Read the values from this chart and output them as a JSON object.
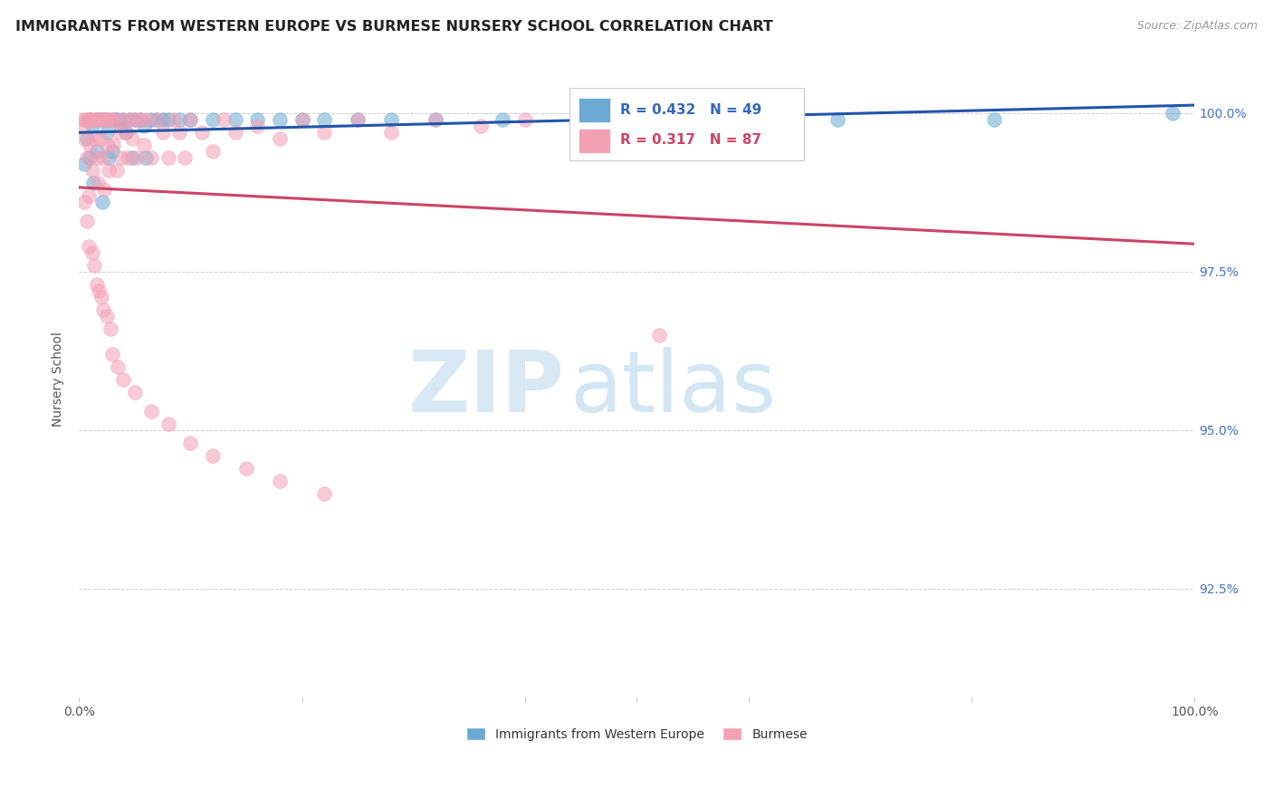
{
  "title": "IMMIGRANTS FROM WESTERN EUROPE VS BURMESE NURSERY SCHOOL CORRELATION CHART",
  "source": "Source: ZipAtlas.com",
  "ylabel": "Nursery School",
  "ytick_labels": [
    "100.0%",
    "97.5%",
    "95.0%",
    "92.5%"
  ],
  "ytick_values": [
    1.0,
    0.975,
    0.95,
    0.925
  ],
  "xmin": 0.0,
  "xmax": 1.0,
  "ymin": 0.908,
  "ymax": 1.008,
  "legend_label_blue": "Immigrants from Western Europe",
  "legend_label_pink": "Burmese",
  "R_blue": 0.432,
  "N_blue": 49,
  "R_pink": 0.317,
  "N_pink": 87,
  "blue_color": "#6aaad4",
  "pink_color": "#f4a0b5",
  "trendline_blue": "#2255aa",
  "trendline_pink": "#cc4466",
  "watermark_zip": "ZIP",
  "watermark_atlas": "atlas",
  "blue_scatter_x": [
    0.005,
    0.007,
    0.01,
    0.01,
    0.012,
    0.013,
    0.015,
    0.016,
    0.018,
    0.02,
    0.021,
    0.022,
    0.025,
    0.025,
    0.027,
    0.03,
    0.03,
    0.032,
    0.035,
    0.037,
    0.04,
    0.042,
    0.045,
    0.048,
    0.05,
    0.055,
    0.058,
    0.06,
    0.065,
    0.07,
    0.075,
    0.08,
    0.09,
    0.1,
    0.12,
    0.14,
    0.16,
    0.18,
    0.2,
    0.22,
    0.25,
    0.28,
    0.32,
    0.38,
    0.45,
    0.55,
    0.68,
    0.82,
    0.98
  ],
  "blue_scatter_y": [
    0.992,
    0.996,
    0.999,
    0.993,
    0.998,
    0.989,
    0.999,
    0.994,
    0.999,
    0.999,
    0.986,
    0.999,
    0.999,
    0.997,
    0.993,
    0.999,
    0.994,
    0.999,
    0.999,
    0.998,
    0.999,
    0.997,
    0.999,
    0.993,
    0.999,
    0.999,
    0.998,
    0.993,
    0.999,
    0.999,
    0.999,
    0.999,
    0.999,
    0.999,
    0.999,
    0.999,
    0.999,
    0.999,
    0.999,
    0.999,
    0.999,
    0.999,
    0.999,
    0.999,
    0.999,
    0.999,
    0.999,
    0.999,
    1.0
  ],
  "pink_scatter_x": [
    0.003,
    0.004,
    0.005,
    0.006,
    0.007,
    0.008,
    0.009,
    0.01,
    0.01,
    0.011,
    0.012,
    0.013,
    0.014,
    0.015,
    0.016,
    0.017,
    0.018,
    0.019,
    0.02,
    0.021,
    0.022,
    0.023,
    0.025,
    0.026,
    0.027,
    0.028,
    0.03,
    0.031,
    0.033,
    0.034,
    0.036,
    0.038,
    0.04,
    0.042,
    0.044,
    0.046,
    0.048,
    0.05,
    0.052,
    0.055,
    0.058,
    0.06,
    0.065,
    0.07,
    0.075,
    0.08,
    0.085,
    0.09,
    0.095,
    0.1,
    0.11,
    0.12,
    0.13,
    0.14,
    0.16,
    0.18,
    0.2,
    0.22,
    0.25,
    0.28,
    0.32,
    0.36,
    0.4,
    0.45,
    0.52,
    0.005,
    0.007,
    0.009,
    0.012,
    0.014,
    0.016,
    0.018,
    0.02,
    0.022,
    0.025,
    0.028,
    0.03,
    0.035,
    0.04,
    0.05,
    0.065,
    0.08,
    0.1,
    0.12,
    0.15,
    0.18,
    0.22
  ],
  "pink_scatter_y": [
    0.999,
    0.998,
    0.996,
    0.999,
    0.993,
    0.999,
    0.987,
    0.999,
    0.995,
    0.999,
    0.991,
    0.999,
    0.996,
    0.999,
    0.993,
    0.989,
    0.999,
    0.996,
    0.999,
    0.993,
    0.999,
    0.988,
    0.999,
    0.995,
    0.991,
    0.999,
    0.999,
    0.995,
    0.999,
    0.991,
    0.997,
    0.993,
    0.999,
    0.997,
    0.993,
    0.999,
    0.996,
    0.999,
    0.993,
    0.999,
    0.995,
    0.999,
    0.993,
    0.999,
    0.997,
    0.993,
    0.999,
    0.997,
    0.993,
    0.999,
    0.997,
    0.994,
    0.999,
    0.997,
    0.998,
    0.996,
    0.999,
    0.997,
    0.999,
    0.997,
    0.999,
    0.998,
    0.999,
    0.999,
    0.965,
    0.986,
    0.983,
    0.979,
    0.978,
    0.976,
    0.973,
    0.972,
    0.971,
    0.969,
    0.968,
    0.966,
    0.962,
    0.96,
    0.958,
    0.956,
    0.953,
    0.951,
    0.948,
    0.946,
    0.944,
    0.942,
    0.94
  ]
}
